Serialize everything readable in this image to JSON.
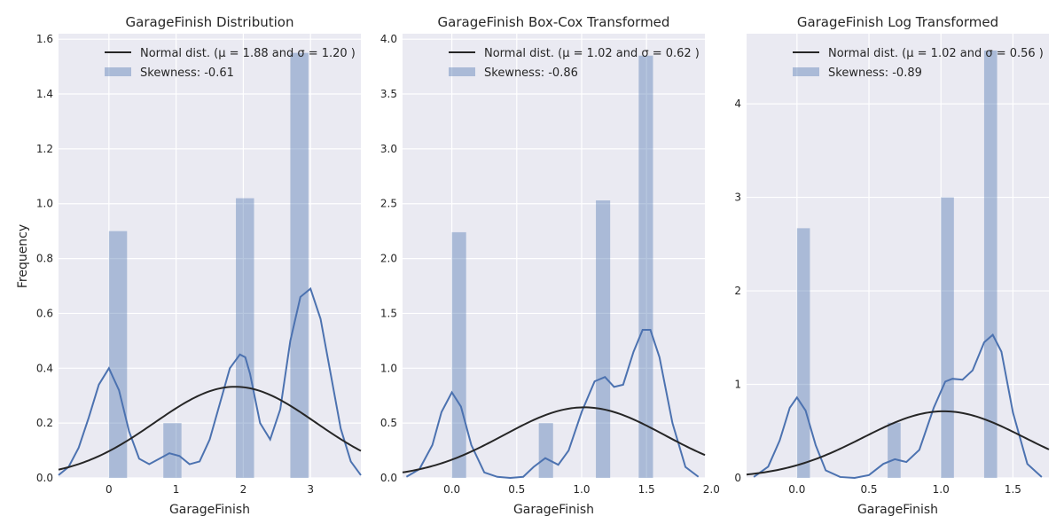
{
  "chart_data": [
    {
      "type": "bar",
      "title": "GarageFinish Distribution",
      "xlabel": "GarageFinish",
      "ylabel": "Frequency",
      "xlim": [
        -0.75,
        3.75
      ],
      "ylim": [
        0,
        1.62
      ],
      "xticks": [
        0,
        1,
        2,
        3
      ],
      "xtick_labels": [
        "0",
        "1",
        "2",
        "3"
      ],
      "yticks": [
        0,
        0.2,
        0.4,
        0.6,
        0.8,
        1.0,
        1.2,
        1.4,
        1.6
      ],
      "ytick_labels": [
        "0.0",
        "0.2",
        "0.4",
        "0.6",
        "0.8",
        "1.0",
        "1.2",
        "1.4",
        "1.6"
      ],
      "histogram": {
        "color": "#4c72b0",
        "bins": [
          {
            "x0": 0.0,
            "x1": 0.27,
            "value": 0.9
          },
          {
            "x0": 0.81,
            "x1": 1.08,
            "value": 0.2
          },
          {
            "x0": 1.89,
            "x1": 2.16,
            "value": 1.02
          },
          {
            "x0": 2.7,
            "x1": 2.97,
            "value": 1.55
          }
        ]
      },
      "kde": {
        "color": "#4c72b0",
        "x": [
          -0.75,
          -0.6,
          -0.45,
          -0.3,
          -0.15,
          0.0,
          0.15,
          0.3,
          0.45,
          0.6,
          0.75,
          0.9,
          1.05,
          1.2,
          1.35,
          1.5,
          1.65,
          1.8,
          1.95,
          2.03,
          2.1,
          2.25,
          2.4,
          2.55,
          2.7,
          2.85,
          3.0,
          3.15,
          3.3,
          3.45,
          3.6,
          3.75
        ],
        "y": [
          0.01,
          0.04,
          0.11,
          0.22,
          0.34,
          0.4,
          0.32,
          0.17,
          0.07,
          0.05,
          0.07,
          0.09,
          0.08,
          0.05,
          0.06,
          0.14,
          0.27,
          0.4,
          0.45,
          0.44,
          0.38,
          0.2,
          0.14,
          0.25,
          0.5,
          0.66,
          0.69,
          0.58,
          0.38,
          0.18,
          0.06,
          0.01
        ]
      },
      "normal_fit": {
        "mu": 1.88,
        "sigma": 1.2,
        "color": "#262626"
      },
      "legend": {
        "position": "top-right",
        "entries": [
          "Normal dist. (μ =  1.88 and σ =  1.20 )",
          "Skewness: -0.61"
        ]
      }
    },
    {
      "type": "bar",
      "title": "GarageFinish Box-Cox Transformed",
      "xlabel": "GarageFinish",
      "ylabel": "",
      "xlim": [
        -0.38,
        1.95
      ],
      "ylim": [
        0,
        4.05
      ],
      "xticks": [
        0.0,
        0.5,
        1.0,
        1.5,
        2.0
      ],
      "xtick_labels": [
        "0.0",
        "0.5",
        "1.0",
        "1.5",
        "2.0"
      ],
      "yticks": [
        0,
        0.5,
        1.0,
        1.5,
        2.0,
        2.5,
        3.0,
        3.5,
        4.0
      ],
      "ytick_labels": [
        "0.0",
        "0.5",
        "1.0",
        "1.5",
        "2.0",
        "2.5",
        "3.0",
        "3.5",
        "4.0"
      ],
      "histogram": {
        "color": "#4c72b0",
        "bins": [
          {
            "x0": 0.0,
            "x1": 0.11,
            "value": 2.24
          },
          {
            "x0": 0.67,
            "x1": 0.78,
            "value": 0.5
          },
          {
            "x0": 1.11,
            "x1": 1.22,
            "value": 2.53
          },
          {
            "x0": 1.44,
            "x1": 1.55,
            "value": 3.85
          }
        ]
      },
      "kde": {
        "color": "#4c72b0",
        "x": [
          -0.35,
          -0.25,
          -0.15,
          -0.08,
          0.0,
          0.07,
          0.15,
          0.25,
          0.35,
          0.45,
          0.55,
          0.63,
          0.72,
          0.82,
          0.9,
          1.0,
          1.1,
          1.18,
          1.25,
          1.32,
          1.4,
          1.47,
          1.53,
          1.6,
          1.7,
          1.8,
          1.9
        ],
        "y": [
          0.01,
          0.08,
          0.3,
          0.6,
          0.78,
          0.65,
          0.3,
          0.05,
          0.01,
          0.0,
          0.01,
          0.1,
          0.18,
          0.12,
          0.25,
          0.6,
          0.88,
          0.92,
          0.83,
          0.85,
          1.15,
          1.35,
          1.35,
          1.1,
          0.5,
          0.1,
          0.01
        ]
      },
      "normal_fit": {
        "mu": 1.02,
        "sigma": 0.62,
        "color": "#262626"
      },
      "legend": {
        "position": "top-right",
        "entries": [
          "Normal dist. (μ =  1.02 and σ =  0.62 )",
          "Skewness: -0.86"
        ]
      }
    },
    {
      "type": "bar",
      "title": "GarageFinish Log Transformed",
      "xlabel": "GarageFinish",
      "ylabel": "",
      "xlim": [
        -0.35,
        1.75
      ],
      "ylim": [
        0,
        4.75
      ],
      "xticks": [
        0.0,
        0.5,
        1.0,
        1.5
      ],
      "xtick_labels": [
        "0.0",
        "0.5",
        "1.0",
        "1.5"
      ],
      "yticks": [
        0,
        1,
        2,
        3,
        4
      ],
      "ytick_labels": [
        "0",
        "1",
        "2",
        "3",
        "4"
      ],
      "histogram": {
        "color": "#4c72b0",
        "bins": [
          {
            "x0": 0.0,
            "x1": 0.09,
            "value": 2.67
          },
          {
            "x0": 0.63,
            "x1": 0.72,
            "value": 0.59
          },
          {
            "x0": 1.0,
            "x1": 1.09,
            "value": 3.0
          },
          {
            "x0": 1.3,
            "x1": 1.39,
            "value": 4.57
          }
        ]
      },
      "kde": {
        "color": "#4c72b0",
        "x": [
          -0.3,
          -0.2,
          -0.12,
          -0.05,
          0.0,
          0.06,
          0.13,
          0.2,
          0.3,
          0.4,
          0.5,
          0.6,
          0.68,
          0.76,
          0.85,
          0.95,
          1.03,
          1.08,
          1.15,
          1.22,
          1.3,
          1.36,
          1.42,
          1.5,
          1.6,
          1.7
        ],
        "y": [
          0.01,
          0.12,
          0.4,
          0.75,
          0.86,
          0.72,
          0.35,
          0.08,
          0.01,
          0.0,
          0.03,
          0.15,
          0.2,
          0.17,
          0.3,
          0.75,
          1.03,
          1.06,
          1.05,
          1.15,
          1.45,
          1.53,
          1.35,
          0.7,
          0.15,
          0.01
        ]
      },
      "normal_fit": {
        "mu": 1.02,
        "sigma": 0.56,
        "color": "#262626"
      },
      "legend": {
        "position": "top-right",
        "entries": [
          "Normal dist. (μ =  1.02 and σ =  0.56 )",
          "Skewness: -0.89"
        ]
      }
    }
  ]
}
